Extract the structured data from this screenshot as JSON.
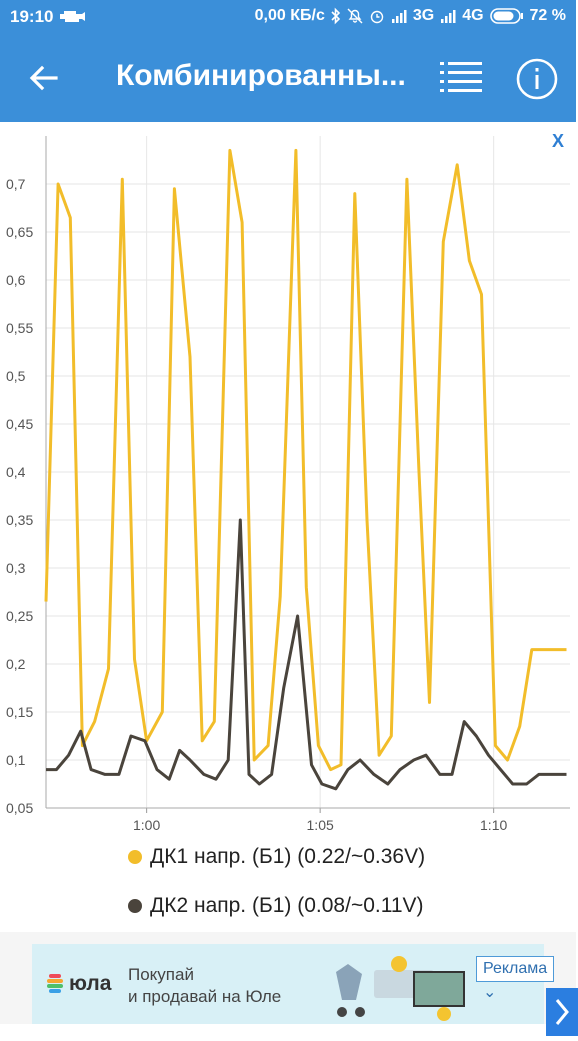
{
  "status_bar": {
    "time": "19:10",
    "speed": "0,00 КБ/с",
    "network_3g": "3G",
    "network_4g": "4G",
    "battery": "72 %",
    "icons": [
      "car-engine-icon",
      "bluetooth-icon",
      "mute-icon",
      "alarm-icon",
      "signal-icon",
      "battery-icon"
    ]
  },
  "app_bar": {
    "title": "Комбинированны...",
    "back_icon": "arrow-back-icon",
    "list_icon": "list-icon",
    "info_icon": "info-icon"
  },
  "chart": {
    "close_label": "X"
  },
  "chart_data": {
    "type": "line",
    "title": "",
    "xlabel": "",
    "ylabel": "",
    "grid": true,
    "legend_position": "bottom",
    "ylim": [
      0.05,
      0.75
    ],
    "y_ticks": [
      "0,05",
      "0,1",
      "0,15",
      "0,2",
      "0,25",
      "0,3",
      "0,35",
      "0,4",
      "0,45",
      "0,5",
      "0,55",
      "0,6",
      "0,65",
      "0,7"
    ],
    "y_tick_values": [
      0.05,
      0.1,
      0.15,
      0.2,
      0.25,
      0.3,
      0.35,
      0.4,
      0.45,
      0.5,
      0.55,
      0.6,
      0.65,
      0.7
    ],
    "x_ticks": [
      "1:00",
      "1:05",
      "1:10"
    ],
    "x_tick_values": [
      60,
      65,
      70
    ],
    "xlim": [
      57.1,
      72.2
    ],
    "series": [
      {
        "name": "ДК1 напр. (Б1) (0.22/~0.36V)",
        "color": "#f2bd2a",
        "x": [
          57.1,
          57.45,
          57.8,
          58.15,
          58.5,
          58.9,
          59.3,
          59.65,
          60.0,
          60.45,
          60.8,
          61.25,
          61.6,
          61.95,
          62.4,
          62.75,
          63.1,
          63.5,
          63.85,
          64.3,
          64.6,
          64.95,
          65.3,
          65.6,
          66.0,
          66.35,
          66.7,
          67.05,
          67.5,
          67.85,
          68.15,
          68.55,
          68.95,
          69.3,
          69.65,
          70.05,
          70.4,
          70.75,
          71.1,
          71.45,
          71.8,
          72.1
        ],
        "values": [
          0.265,
          0.7,
          0.665,
          0.115,
          0.14,
          0.195,
          0.705,
          0.205,
          0.12,
          0.15,
          0.695,
          0.52,
          0.12,
          0.14,
          0.735,
          0.66,
          0.1,
          0.115,
          0.27,
          0.735,
          0.28,
          0.115,
          0.09,
          0.095,
          0.69,
          0.35,
          0.105,
          0.125,
          0.705,
          0.4,
          0.16,
          0.64,
          0.72,
          0.62,
          0.585,
          0.115,
          0.1,
          0.135,
          0.215,
          0.215,
          0.215,
          0.215
        ]
      },
      {
        "name": "ДК2 напр. (Б1) (0.08/~0.11V)",
        "color": "#4a443c",
        "x": [
          57.1,
          57.4,
          57.75,
          58.1,
          58.4,
          58.8,
          59.2,
          59.55,
          59.95,
          60.3,
          60.65,
          60.95,
          61.25,
          61.65,
          62.0,
          62.35,
          62.7,
          62.95,
          63.25,
          63.6,
          63.95,
          64.35,
          64.75,
          65.05,
          65.45,
          65.8,
          66.15,
          66.55,
          66.95,
          67.3,
          67.7,
          68.05,
          68.45,
          68.8,
          69.15,
          69.5,
          69.85,
          70.2,
          70.55,
          70.95,
          71.3,
          71.65,
          72.1
        ],
        "values": [
          0.09,
          0.09,
          0.105,
          0.13,
          0.09,
          0.085,
          0.085,
          0.125,
          0.12,
          0.09,
          0.08,
          0.11,
          0.1,
          0.085,
          0.08,
          0.1,
          0.35,
          0.085,
          0.075,
          0.085,
          0.175,
          0.25,
          0.095,
          0.075,
          0.07,
          0.09,
          0.1,
          0.085,
          0.075,
          0.09,
          0.1,
          0.105,
          0.085,
          0.085,
          0.14,
          0.125,
          0.105,
          0.09,
          0.075,
          0.075,
          0.085,
          0.085,
          0.085
        ]
      }
    ]
  },
  "legend": {
    "item1": "ДК1 напр. (Б1) (0.22/~0.36V)",
    "item2": "ДК2 напр. (Б1) (0.08/~0.11V)"
  },
  "ad": {
    "brand": "юла",
    "line1": "Покупай",
    "line2": "и продавай на Юле",
    "badge": "Реклама ⌄",
    "arrow_icon": "chevron-right-icon"
  }
}
